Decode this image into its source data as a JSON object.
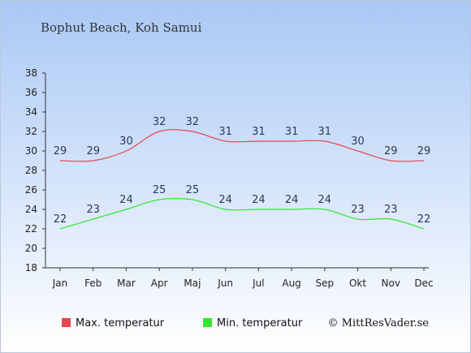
{
  "chart_data": {
    "type": "line",
    "title": "Bophut Beach, Koh Samui",
    "categories": [
      "Jan",
      "Feb",
      "Mar",
      "Apr",
      "Maj",
      "Jun",
      "Jul",
      "Aug",
      "Sep",
      "Okt",
      "Nov",
      "Dec"
    ],
    "series": [
      {
        "name": "Max. temperatur",
        "color": "#e8464a",
        "values": [
          29,
          29,
          30,
          32,
          32,
          31,
          31,
          31,
          31,
          30,
          29,
          29
        ]
      },
      {
        "name": "Min. temperatur",
        "color": "#33e633",
        "values": [
          22,
          23,
          24,
          25,
          25,
          24,
          24,
          24,
          24,
          23,
          23,
          22
        ]
      }
    ],
    "ylim": [
      18,
      38
    ],
    "yticks": [
      18,
      20,
      22,
      24,
      26,
      28,
      30,
      32,
      34,
      36,
      38
    ],
    "legend_position": "bottom-left",
    "background": {
      "top": "#a9c8f5",
      "bottom": "#ffffff"
    }
  },
  "credit": "© MittResVader.se"
}
